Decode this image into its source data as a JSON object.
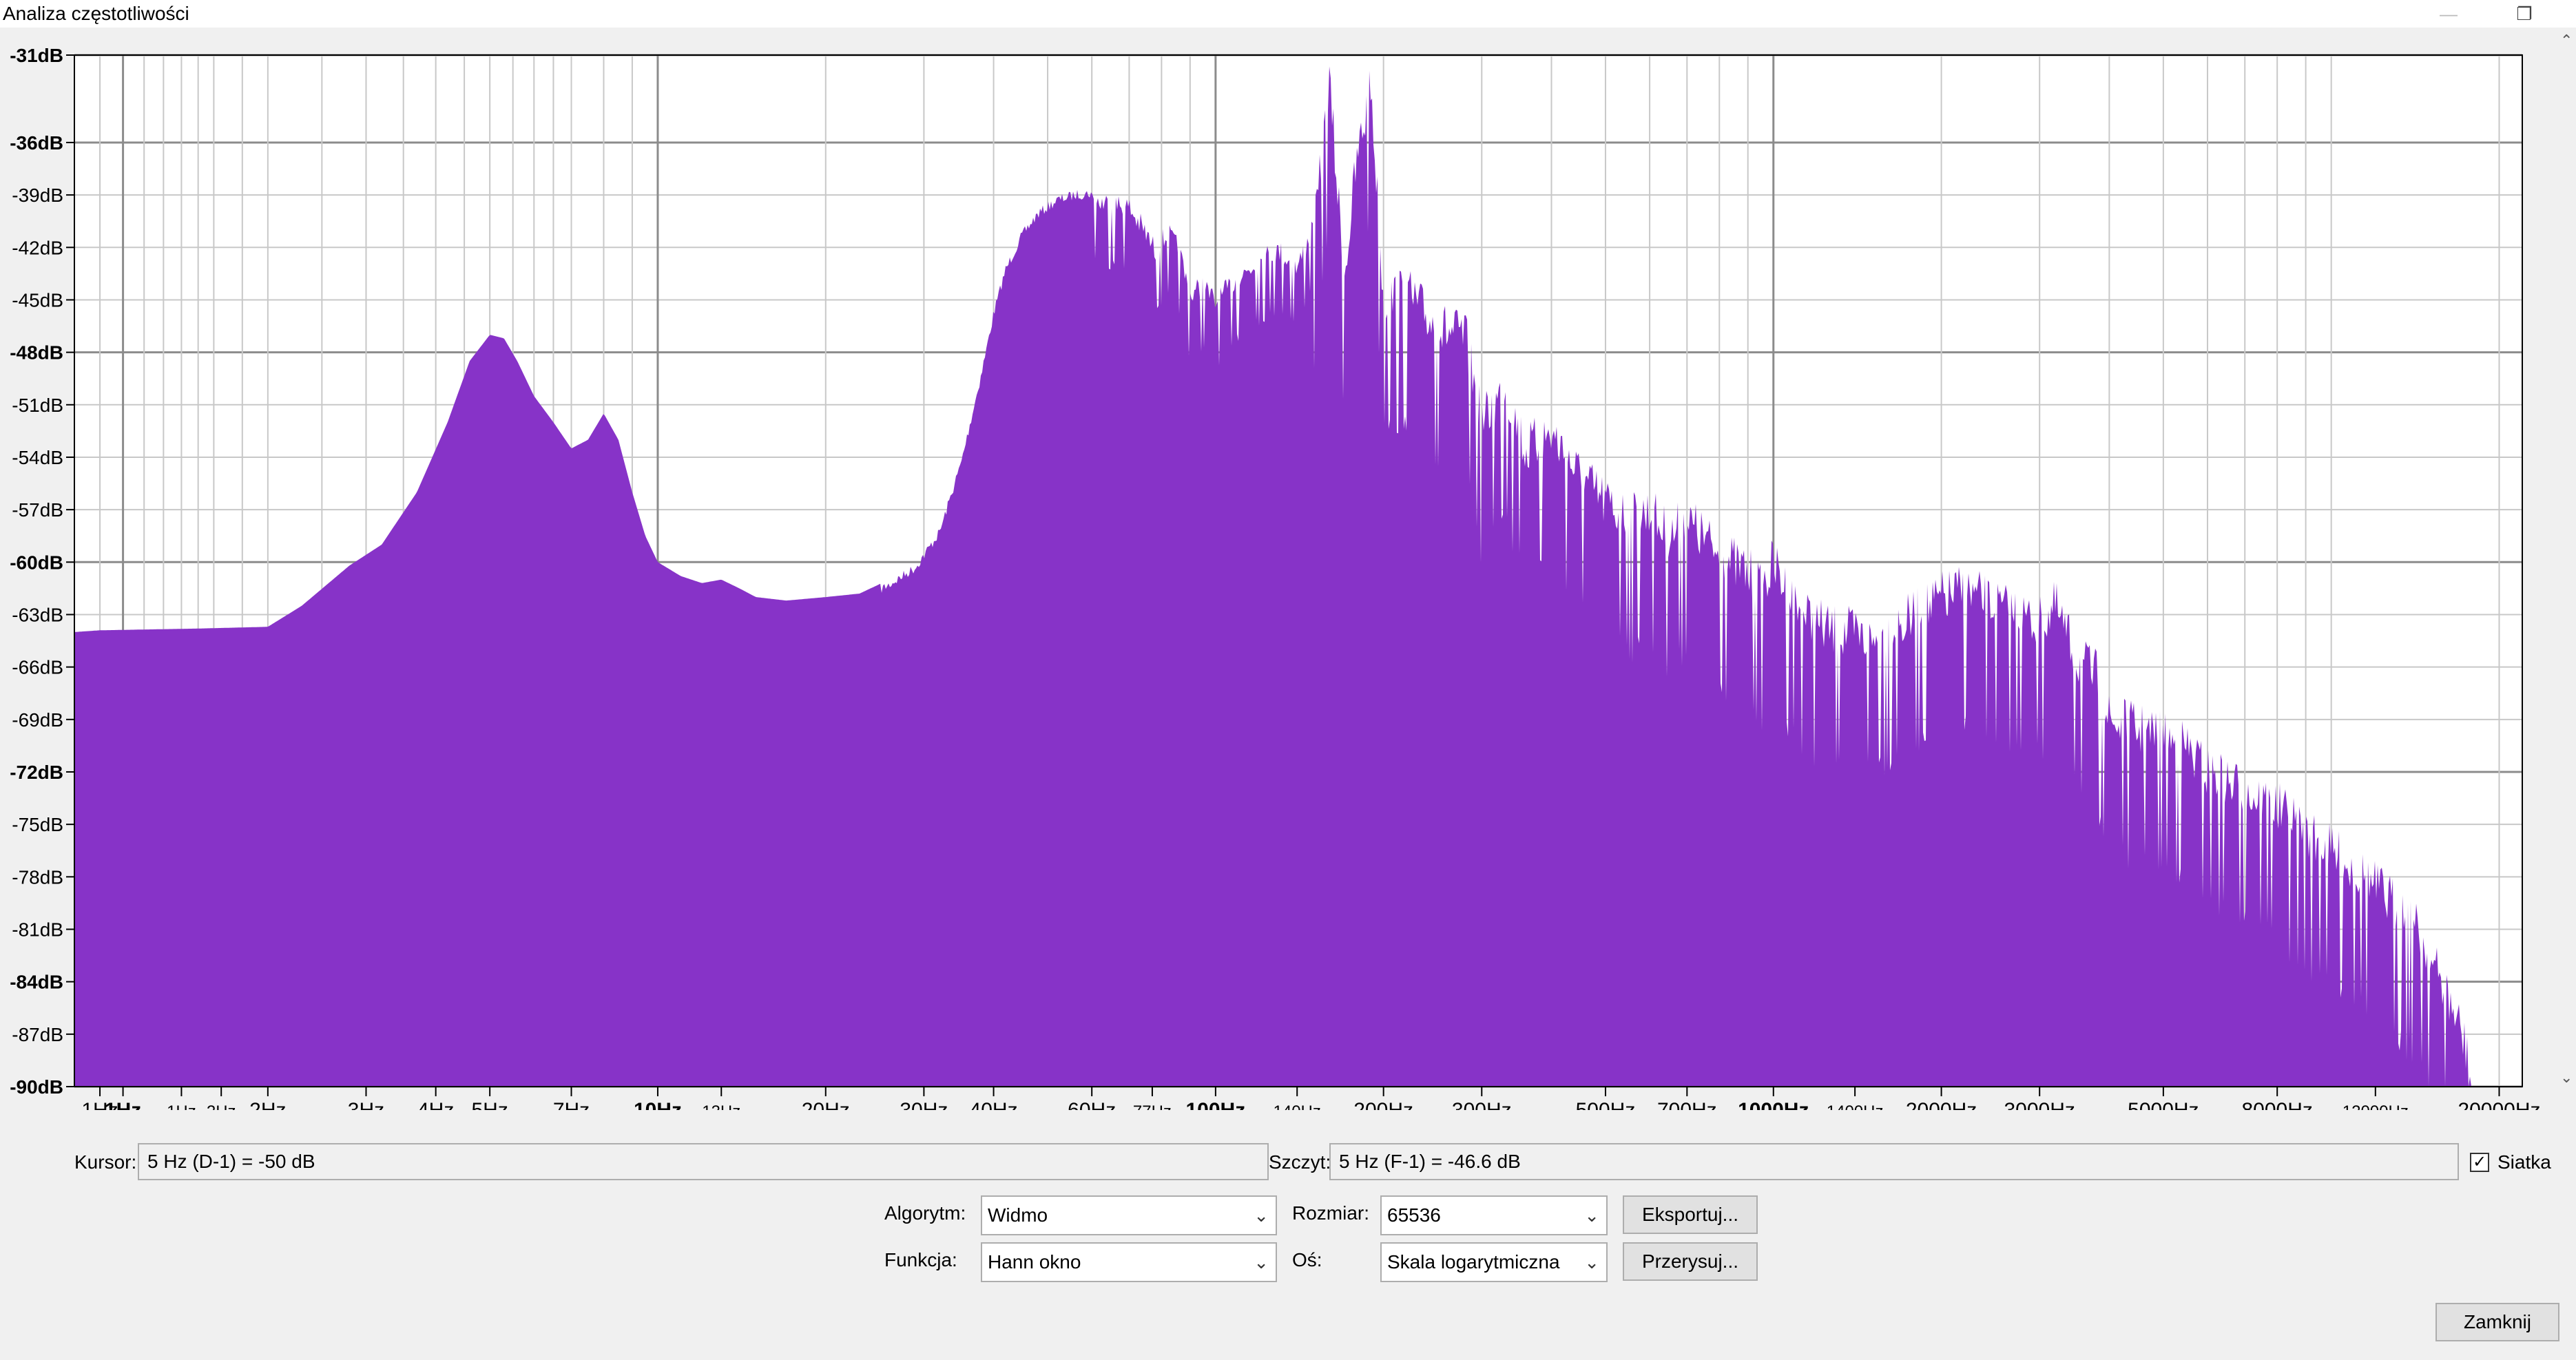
{
  "window": {
    "title": "Analiza częstotliwości",
    "minimize_icon": "minimize-icon",
    "restore_icon": "restore-icon"
  },
  "chart_data": {
    "type": "area",
    "title": "",
    "xlabel": "",
    "ylabel": "",
    "x_scale": "log",
    "xlim": [
      0.9,
      22000
    ],
    "ylim": [
      -90,
      -31
    ],
    "grid": true,
    "fill_color": "#8733c8",
    "y_ticks": [
      {
        "v": -31,
        "label": "-31dB",
        "bold": true
      },
      {
        "v": -36,
        "label": "-36dB",
        "bold": true
      },
      {
        "v": -39,
        "label": "-39dB",
        "bold": false
      },
      {
        "v": -42,
        "label": "-42dB",
        "bold": false
      },
      {
        "v": -45,
        "label": "-45dB",
        "bold": false
      },
      {
        "v": -48,
        "label": "-48dB",
        "bold": true
      },
      {
        "v": -51,
        "label": "-51dB",
        "bold": false
      },
      {
        "v": -54,
        "label": "-54dB",
        "bold": false
      },
      {
        "v": -57,
        "label": "-57dB",
        "bold": false
      },
      {
        "v": -60,
        "label": "-60dB",
        "bold": true
      },
      {
        "v": -63,
        "label": "-63dB",
        "bold": false
      },
      {
        "v": -66,
        "label": "-66dB",
        "bold": false
      },
      {
        "v": -69,
        "label": "-69dB",
        "bold": false
      },
      {
        "v": -72,
        "label": "-72dB",
        "bold": true
      },
      {
        "v": -75,
        "label": "-75dB",
        "bold": false
      },
      {
        "v": -78,
        "label": "-78dB",
        "bold": false
      },
      {
        "v": -81,
        "label": "-81dB",
        "bold": false
      },
      {
        "v": -84,
        "label": "-84dB",
        "bold": true
      },
      {
        "v": -87,
        "label": "-87dB",
        "bold": false
      },
      {
        "v": -90,
        "label": "-90dB",
        "bold": true
      }
    ],
    "x_ticks": [
      {
        "v": 1.0,
        "label": "1Hz",
        "bold": false,
        "small": false
      },
      {
        "v": 1.1,
        "label": "1Hz",
        "bold": true,
        "small": false
      },
      {
        "v": 1.4,
        "label": "1Hz",
        "bold": false,
        "small": true
      },
      {
        "v": 1.65,
        "label": "2Hz",
        "bold": false,
        "small": true
      },
      {
        "v": 2.0,
        "label": "2Hz",
        "bold": false,
        "small": false
      },
      {
        "v": 3.0,
        "label": "3Hz",
        "bold": false,
        "small": false
      },
      {
        "v": 4.0,
        "label": "4Hz",
        "bold": false,
        "small": false
      },
      {
        "v": 5.0,
        "label": "5Hz",
        "bold": false,
        "small": false
      },
      {
        "v": 7.0,
        "label": "7Hz",
        "bold": false,
        "small": false
      },
      {
        "v": 10,
        "label": "10Hz",
        "bold": true,
        "small": false
      },
      {
        "v": 13,
        "label": "13Hz",
        "bold": false,
        "small": true
      },
      {
        "v": 20,
        "label": "20Hz",
        "bold": false,
        "small": false
      },
      {
        "v": 30,
        "label": "30Hz",
        "bold": false,
        "small": false
      },
      {
        "v": 40,
        "label": "40Hz",
        "bold": false,
        "small": false
      },
      {
        "v": 60,
        "label": "60Hz",
        "bold": false,
        "small": false
      },
      {
        "v": 77,
        "label": "77Hz",
        "bold": false,
        "small": true
      },
      {
        "v": 100,
        "label": "100Hz",
        "bold": true,
        "small": false
      },
      {
        "v": 140,
        "label": "140Hz",
        "bold": false,
        "small": true
      },
      {
        "v": 200,
        "label": "200Hz",
        "bold": false,
        "small": false
      },
      {
        "v": 300,
        "label": "300Hz",
        "bold": false,
        "small": false
      },
      {
        "v": 500,
        "label": "500Hz",
        "bold": false,
        "small": false
      },
      {
        "v": 700,
        "label": "700Hz",
        "bold": false,
        "small": false
      },
      {
        "v": 1000,
        "label": "1000Hz",
        "bold": true,
        "small": false
      },
      {
        "v": 1400,
        "label": "1400Hz",
        "bold": false,
        "small": true
      },
      {
        "v": 2000,
        "label": "2000Hz",
        "bold": false,
        "small": false
      },
      {
        "v": 3000,
        "label": "3000Hz",
        "bold": false,
        "small": false
      },
      {
        "v": 5000,
        "label": "5000Hz",
        "bold": false,
        "small": false
      },
      {
        "v": 8000,
        "label": "8000Hz",
        "bold": false,
        "small": false
      },
      {
        "v": 12000,
        "label": "12000Hz",
        "bold": false,
        "small": true
      },
      {
        "v": 20000,
        "label": "20000Hz",
        "bold": false,
        "small": false
      }
    ],
    "x_gridlines": [
      1,
      1.1,
      1.2,
      1.3,
      1.4,
      1.5,
      1.6,
      1.8,
      2,
      2.5,
      3,
      3.5,
      4,
      4.5,
      5,
      5.5,
      6,
      6.5,
      7,
      8,
      9,
      10,
      20,
      30,
      40,
      50,
      60,
      70,
      80,
      90,
      100,
      200,
      300,
      400,
      500,
      600,
      700,
      800,
      900,
      1000,
      2000,
      3000,
      4000,
      5000,
      6000,
      7000,
      8000,
      9000,
      10000,
      20000
    ],
    "x_gridlines_major": [
      1.1,
      10,
      100,
      1000
    ],
    "series": [
      {
        "x": [
          0.9,
          1.0,
          1.5,
          2.0,
          2.3,
          2.8,
          3.2,
          3.7,
          4.2,
          4.6,
          5.0,
          5.3,
          5.6,
          6.0,
          6.5,
          7.0,
          7.5,
          8.0,
          8.5,
          9.0,
          9.5,
          10,
          11,
          12,
          13,
          14,
          15,
          17,
          20,
          23,
          26,
          29,
          32,
          35,
          38,
          40,
          42,
          45,
          48,
          52,
          56,
          60,
          65,
          70,
          75,
          78,
          82,
          86,
          90,
          95,
          100,
          110,
          120,
          130,
          140,
          150,
          160,
          170,
          180,
          190,
          200,
          220,
          250,
          280,
          300,
          330,
          360,
          400,
          450,
          500,
          550,
          600,
          650,
          700,
          750,
          800,
          850,
          900,
          950,
          1000,
          1100,
          1200,
          1300,
          1400,
          1500,
          1700,
          1900,
          2000,
          2200,
          2500,
          2800,
          3000,
          3200,
          3500,
          3800,
          4000,
          4500,
          5000,
          5500,
          6000,
          7000,
          8000,
          9000,
          10000,
          11000,
          12000,
          13000,
          14000,
          15000,
          16000,
          17000,
          17500,
          18000
        ],
        "y": [
          -64.0,
          -63.9,
          -63.8,
          -63.7,
          -62.5,
          -60.2,
          -59.0,
          -56.0,
          -52.0,
          -48.5,
          -47.0,
          -47.2,
          -48.5,
          -50.5,
          -52.0,
          -53.5,
          -53.0,
          -51.5,
          -53.0,
          -56.0,
          -58.5,
          -60.0,
          -60.8,
          -61.2,
          -61.0,
          -61.5,
          -62.0,
          -62.2,
          -62.0,
          -61.8,
          -61.0,
          -60.0,
          -58.0,
          -54.0,
          -49.0,
          -45.5,
          -43.0,
          -41.0,
          -39.8,
          -39.0,
          -38.7,
          -38.6,
          -38.8,
          -39.0,
          -40.5,
          -41.5,
          -40.5,
          -41.5,
          -44.0,
          -43.5,
          -44.5,
          -43.0,
          -42.0,
          -41.5,
          -42.5,
          -40.0,
          -31.0,
          -42.0,
          -35.0,
          -31.2,
          -43.5,
          -43.0,
          -45.0,
          -45.5,
          -50.5,
          -48.5,
          -52.0,
          -51.0,
          -53.5,
          -55.0,
          -56.0,
          -55.5,
          -57.0,
          -56.0,
          -57.0,
          -58.0,
          -58.5,
          -59.0,
          -60.0,
          -58.5,
          -61.0,
          -62.0,
          -62.5,
          -62.5,
          -63.0,
          -62.0,
          -61.0,
          -60.5,
          -60.0,
          -61.0,
          -61.5,
          -62.0,
          -61.0,
          -64.0,
          -65.0,
          -67.5,
          -68.0,
          -68.5,
          -69.0,
          -70.5,
          -71.5,
          -72.5,
          -74.0,
          -75.0,
          -76.0,
          -77.0,
          -78.0,
          -79.0,
          -81.0,
          -83.0,
          -85.0,
          -86.5,
          -90.0
        ]
      }
    ]
  },
  "cursor": {
    "label": "Kursor:",
    "value": "5 Hz (D-1) = -50 dB"
  },
  "peak": {
    "label": "Szczyt:",
    "value": "5 Hz (F-1) = -46.6 dB"
  },
  "grid_toggle": {
    "label": "Siatka",
    "checked": true,
    "checkmark": "✓"
  },
  "controls": {
    "algorithm_label": "Algorytm:",
    "algorithm_value": "Widmo",
    "size_label": "Rozmiar:",
    "size_value": "65536",
    "export_label": "Eksportuj...",
    "function_label": "Funkcja:",
    "function_value": "Hann okno",
    "axis_label": "Oś:",
    "axis_value": "Skala logarytmiczna",
    "replot_label": "Przerysuj...",
    "close_label": "Zamknij"
  }
}
